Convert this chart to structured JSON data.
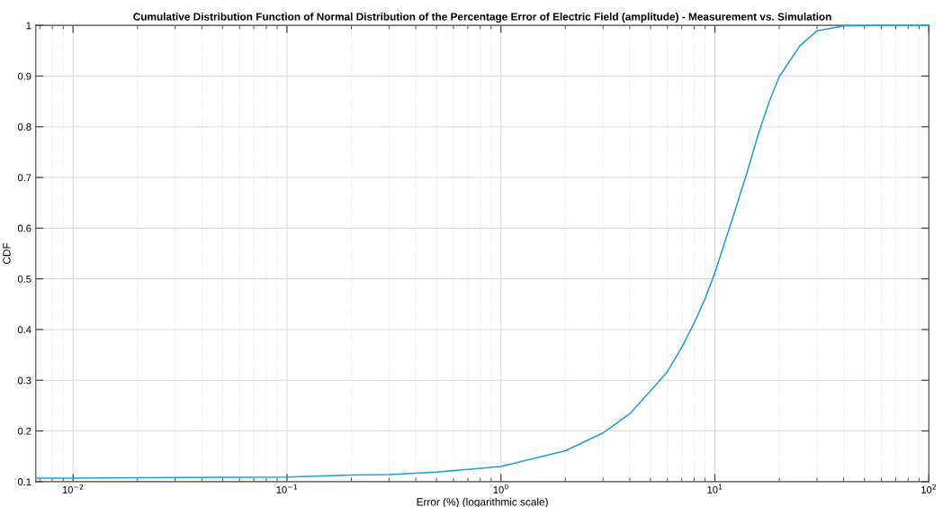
{
  "chart_data": {
    "type": "line",
    "title": "Cumulative Distribution Function of Normal Distribution of the Percentage Error of Electric Field (amplitude) - Measurement vs. Simulation",
    "xlabel": "Error (%) (logarithmic scale)",
    "ylabel": "CDF",
    "log": "x",
    "grid": true,
    "marker": "none",
    "line_style": "solid",
    "xlim": [
      0.0067,
      100
    ],
    "ylim": [
      0.1,
      1
    ],
    "xticks": [
      {
        "value": 0.01,
        "label": "10$^{−2}$"
      },
      {
        "value": 0.1,
        "label": "10$^{−1}$"
      },
      {
        "value": 1,
        "label": "10$^{0}$"
      },
      {
        "value": 10,
        "label": "10$^{1}$"
      },
      {
        "value": 100,
        "label": "10$^{2}$"
      }
    ],
    "yticks": [
      0.1,
      0.2,
      0.3,
      0.4,
      0.5,
      0.6,
      0.7,
      0.8,
      0.9,
      1
    ],
    "series": [
      {
        "color": "#1f9fd8",
        "x": [
          0.0067,
          0.01,
          0.03,
          0.1,
          0.2,
          0.3,
          0.5,
          0.7,
          1,
          2,
          3,
          4,
          5,
          6,
          7,
          8,
          9,
          10,
          12,
          14,
          16,
          18,
          20,
          25,
          30,
          40,
          60,
          100
        ],
        "values": [
          0.107,
          0.107,
          0.108,
          0.109,
          0.113,
          0.114,
          0.119,
          0.124,
          0.13,
          0.161,
          0.196,
          0.234,
          0.279,
          0.317,
          0.365,
          0.413,
          0.461,
          0.512,
          0.615,
          0.704,
          0.787,
          0.851,
          0.899,
          0.96,
          0.989,
          0.999,
          1.0,
          1.0
        ]
      }
    ]
  }
}
